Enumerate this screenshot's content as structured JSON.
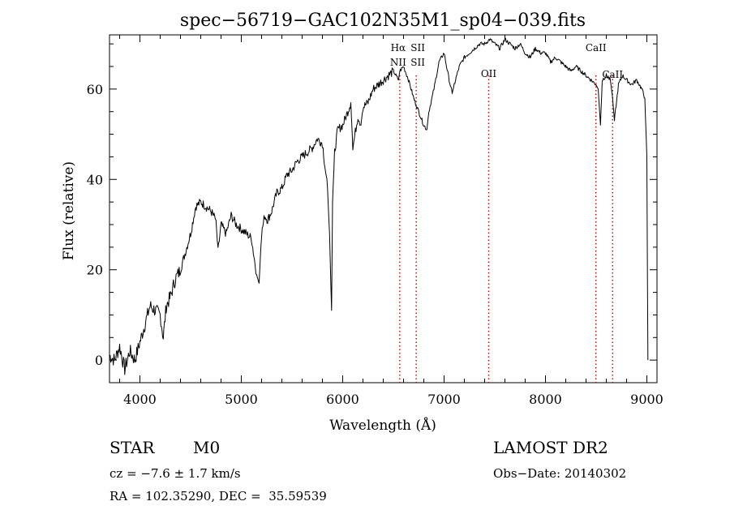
{
  "chart_data": {
    "type": "line",
    "title": "spec−56719−GAC102N35M1_sp04−039.fits",
    "xlabel": "Wavelength (Å)",
    "ylabel": "Flux (relative)",
    "xlim": [
      3700,
      9100
    ],
    "ylim": [
      -5,
      72
    ],
    "xticks": [
      4000,
      5000,
      6000,
      7000,
      8000,
      9000
    ],
    "yticks": [
      0,
      20,
      40,
      60
    ],
    "grid": false,
    "series": [
      {
        "color": "#000000",
        "x": [
          3700,
          3750,
          3800,
          3850,
          3900,
          3950,
          4000,
          4050,
          4100,
          4150,
          4200,
          4230,
          4260,
          4300,
          4350,
          4400,
          4450,
          4500,
          4550,
          4600,
          4650,
          4700,
          4750,
          4770,
          4800,
          4850,
          4900,
          4950,
          5000,
          5050,
          5100,
          5150,
          5175,
          5200,
          5230,
          5260,
          5300,
          5350,
          5400,
          5450,
          5500,
          5550,
          5600,
          5650,
          5700,
          5750,
          5800,
          5850,
          5870,
          5890,
          5900,
          5920,
          5950,
          6000,
          6050,
          6080,
          6100,
          6150,
          6180,
          6200,
          6250,
          6300,
          6350,
          6400,
          6450,
          6500,
          6550,
          6563,
          6600,
          6650,
          6700,
          6750,
          6800,
          6830,
          6850,
          6900,
          6950,
          7000,
          7050,
          7080,
          7100,
          7150,
          7200,
          7250,
          7300,
          7350,
          7400,
          7450,
          7500,
          7550,
          7600,
          7650,
          7700,
          7750,
          7800,
          7850,
          7900,
          7950,
          8000,
          8050,
          8100,
          8150,
          8200,
          8250,
          8300,
          8350,
          8400,
          8450,
          8498,
          8520,
          8542,
          8560,
          8600,
          8640,
          8662,
          8680,
          8720,
          8760,
          8800,
          8850,
          8900,
          8950,
          8980,
          9000,
          9010
        ],
        "y": [
          1,
          0,
          3,
          -2,
          2,
          0,
          4,
          8,
          12,
          11,
          10,
          5,
          12,
          14,
          18,
          20,
          24,
          28,
          34,
          35,
          34,
          33,
          31,
          24,
          30,
          28,
          32,
          30,
          29,
          28,
          27,
          19,
          17,
          28,
          32,
          31,
          33,
          37,
          38,
          41,
          42,
          44,
          45,
          46,
          47,
          49,
          48,
          38,
          28,
          11,
          35,
          46,
          51,
          52,
          55,
          57,
          47,
          54,
          52,
          56,
          57,
          60,
          61,
          62,
          63,
          64,
          62,
          64,
          65,
          62,
          58,
          55,
          52,
          51,
          55,
          60,
          66,
          68,
          62,
          59,
          61,
          65,
          67,
          68,
          69,
          70,
          70,
          71,
          70,
          69,
          71,
          70,
          69,
          70,
          68,
          67,
          69,
          68,
          68,
          66,
          67,
          66,
          65,
          64,
          65,
          64,
          63,
          62,
          61,
          60,
          52,
          62,
          63,
          62,
          58,
          53,
          61,
          63,
          62,
          61,
          62,
          60,
          58,
          45,
          0
        ]
      }
    ],
    "annotations": [
      {
        "x": 6563,
        "lines": [
          "Hα",
          "NII"
        ]
      },
      {
        "x": 6725,
        "lines": [
          "SII",
          "SII"
        ]
      },
      {
        "x": 7440,
        "lines": [
          "OII"
        ]
      },
      {
        "x": 8498,
        "lines": [
          "CaII"
        ]
      },
      {
        "x": 8662,
        "lines": [
          "CaII"
        ]
      }
    ],
    "line_marker_color": "#d00000"
  },
  "info": {
    "object_class": "STAR",
    "subclass": "M0",
    "survey": "LAMOST DR2",
    "redshift": "cz = −7.6 ± 1.7 km/s",
    "obs_date": "Obs−Date: 20140302",
    "coords": "RA = 102.35290, DEC =  35.59539"
  }
}
